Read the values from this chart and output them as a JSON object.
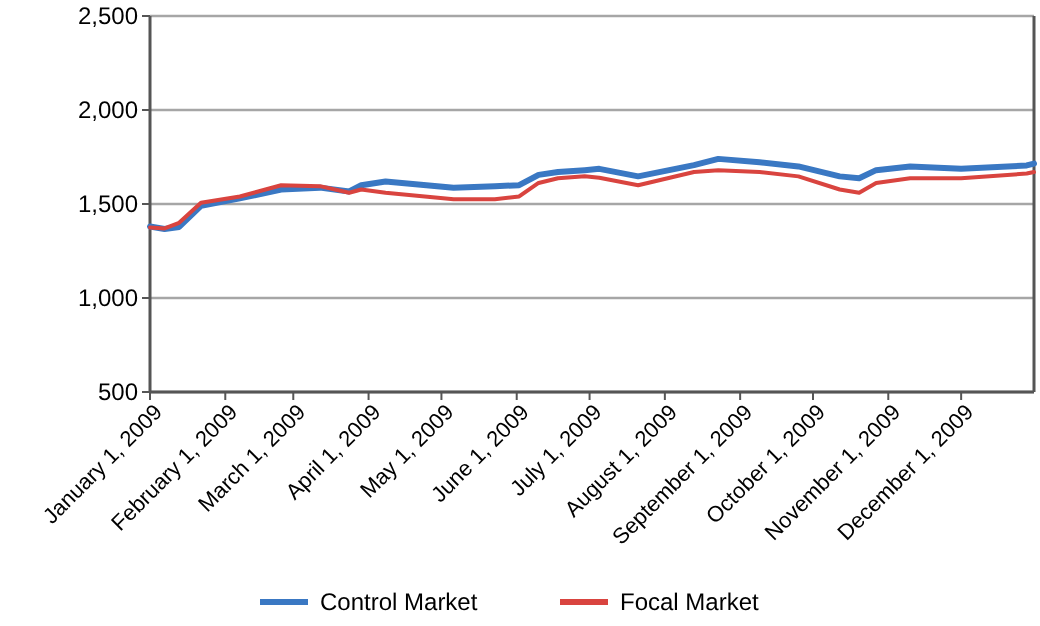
{
  "chart_data": {
    "type": "line",
    "x": [
      "2009-01-01",
      "2009-01-07",
      "2009-01-13",
      "2009-01-22",
      "2009-02-07",
      "2009-02-24",
      "2009-03-12",
      "2009-03-24",
      "2009-03-29",
      "2009-04-08",
      "2009-05-06",
      "2009-05-23",
      "2009-06-02",
      "2009-06-10",
      "2009-06-18",
      "2009-06-29",
      "2009-07-05",
      "2009-07-21",
      "2009-08-13",
      "2009-08-23",
      "2009-09-09",
      "2009-09-25",
      "2009-10-12",
      "2009-10-20",
      "2009-10-27",
      "2009-11-10",
      "2009-12-01",
      "2009-12-28",
      "2009-12-31"
    ],
    "series": [
      {
        "name": "Control Market",
        "color": "#3a78c3",
        "values": [
          1380,
          1367,
          1378,
          1490,
          1530,
          1577,
          1587,
          1567,
          1600,
          1620,
          1587,
          1595,
          1600,
          1655,
          1670,
          1680,
          1687,
          1647,
          1707,
          1740,
          1722,
          1700,
          1647,
          1637,
          1680,
          1700,
          1687,
          1705,
          1715
        ]
      },
      {
        "name": "Focal Market",
        "color": "#d9443f",
        "values": [
          1375,
          1370,
          1400,
          1507,
          1540,
          1600,
          1595,
          1560,
          1577,
          1560,
          1525,
          1525,
          1540,
          1612,
          1637,
          1647,
          1640,
          1600,
          1670,
          1680,
          1670,
          1647,
          1577,
          1560,
          1612,
          1637,
          1637,
          1662,
          1670
        ]
      }
    ],
    "xlim": [
      "2009-01-01",
      "2009-12-31"
    ],
    "xticks": [
      {
        "value": "2009-01-01",
        "label": "January 1, 2009"
      },
      {
        "value": "2009-02-01",
        "label": "February 1, 2009"
      },
      {
        "value": "2009-03-01",
        "label": "March 1, 2009"
      },
      {
        "value": "2009-04-01",
        "label": "April 1, 2009"
      },
      {
        "value": "2009-05-01",
        "label": "May 1, 2009"
      },
      {
        "value": "2009-06-01",
        "label": "June 1, 2009"
      },
      {
        "value": "2009-07-01",
        "label": "July 1, 2009"
      },
      {
        "value": "2009-08-01",
        "label": "August 1, 2009"
      },
      {
        "value": "2009-09-01",
        "label": "September 1, 2009"
      },
      {
        "value": "2009-10-01",
        "label": "October 1, 2009"
      },
      {
        "value": "2009-11-01",
        "label": "November 1, 2009"
      },
      {
        "value": "2009-12-01",
        "label": "December 1, 2009"
      }
    ],
    "ylim": [
      500,
      2500
    ],
    "yticks": [
      {
        "value": 500,
        "label": "500"
      },
      {
        "value": 1000,
        "label": "1,000"
      },
      {
        "value": 1500,
        "label": "1,500"
      },
      {
        "value": 2000,
        "label": "2,000"
      },
      {
        "value": 2500,
        "label": "2,500"
      }
    ],
    "grid": "y",
    "legend": "bottom",
    "line_style": "solid",
    "marker": "none"
  }
}
